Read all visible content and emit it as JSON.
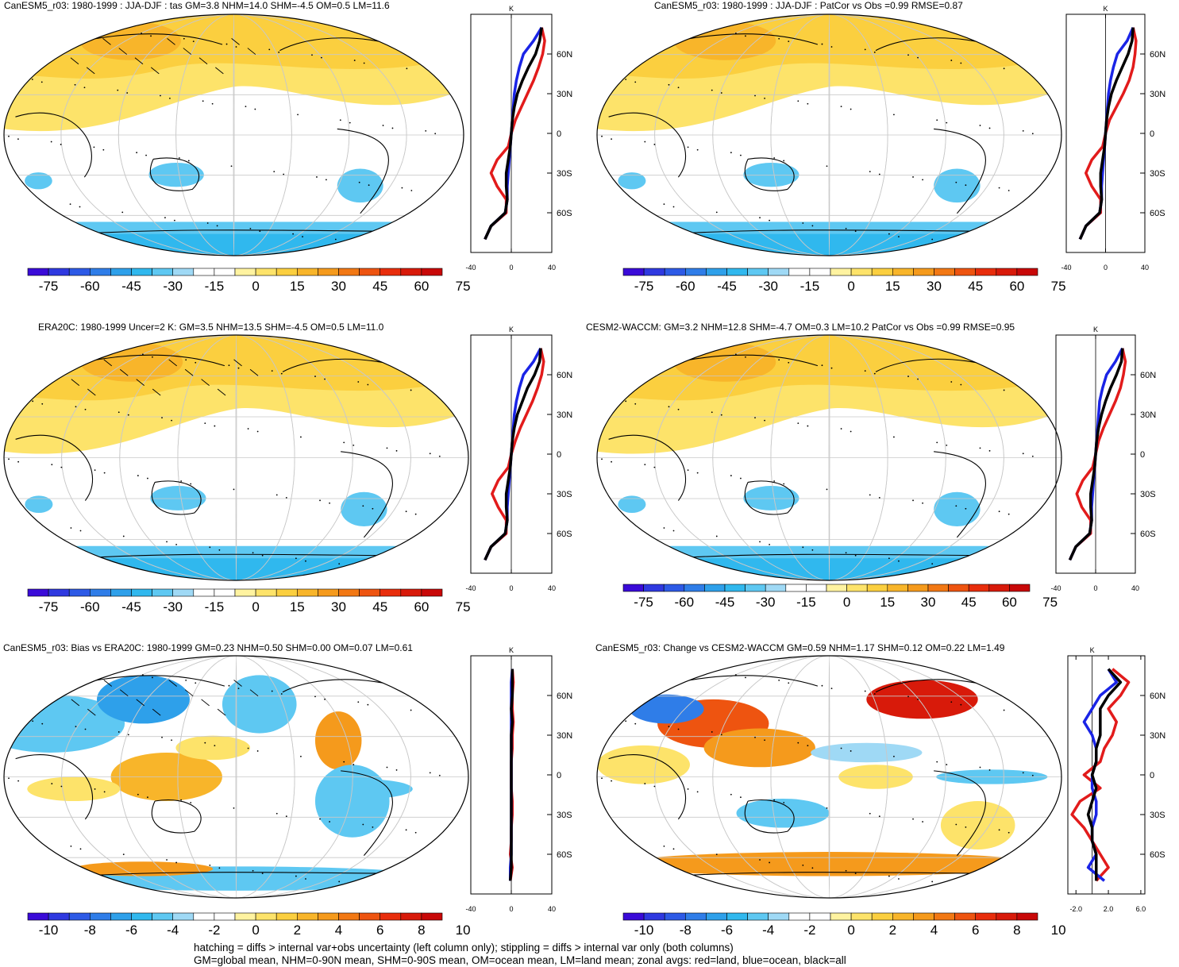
{
  "palette": [
    "#3a0bd8",
    "#2f39e0",
    "#2d5ae6",
    "#2f7de8",
    "#2ea0ea",
    "#30b8ee",
    "#5ec8f2",
    "#9fd9f5",
    "#ffffff",
    "#ffffff",
    "#fff3a0",
    "#fde36a",
    "#fbcf3f",
    "#f8b52a",
    "#f59a1c",
    "#f27814",
    "#ee5410",
    "#e82d0c",
    "#d81a0a",
    "#c80808"
  ],
  "zonal_colors": {
    "land": "#e21b1b",
    "ocean": "#1a24e6",
    "all": "#000000"
  },
  "panels": [
    {
      "id": "p1",
      "title": "CanESM5_r03: 1980-1999 : JJA-DJF : tas GM=3.8 NHM=14.0 SHM=-4.5 OM=0.5 LM=11.6",
      "cbar_labels": [
        "-75",
        "-60",
        "-45",
        "-30",
        "-15",
        "0",
        "15",
        "30",
        "45",
        "60",
        "75"
      ],
      "zonal_top": "K",
      "zonal_xticks": [
        "-40",
        "0",
        "40"
      ],
      "zonal_yticks": [
        "60N",
        "30N",
        "0",
        "30S",
        "60S"
      ]
    },
    {
      "id": "p2",
      "title": "CanESM5_r03: 1980-1999 : JJA-DJF : PatCor vs Obs =0.99 RMSE=0.87",
      "cbar_labels": [
        "-75",
        "-60",
        "-45",
        "-30",
        "-15",
        "0",
        "15",
        "30",
        "45",
        "60",
        "75"
      ],
      "zonal_top": "K",
      "zonal_xticks": [
        "-40",
        "0",
        "40"
      ],
      "zonal_yticks": [
        "60N",
        "30N",
        "0",
        "30S",
        "60S"
      ]
    },
    {
      "id": "p3",
      "title": "ERA20C: 1980-1999 Uncer=2 K: GM=3.5 NHM=13.5 SHM=-4.5 OM=0.5 LM=11.0",
      "cbar_labels": [
        "-75",
        "-60",
        "-45",
        "-30",
        "-15",
        "0",
        "15",
        "30",
        "45",
        "60",
        "75"
      ],
      "zonal_top": "K",
      "zonal_xticks": [
        "-40",
        "0",
        "40"
      ],
      "zonal_yticks": [
        "60N",
        "30N",
        "0",
        "30S",
        "60S"
      ]
    },
    {
      "id": "p4",
      "title": "CESM2-WACCM: GM=3.2 NHM=12.8 SHM=-4.7 OM=0.3 LM=10.2 PatCor vs Obs =0.99 RMSE=0.95",
      "cbar_labels": [
        "-75",
        "-60",
        "-45",
        "-30",
        "-15",
        "0",
        "15",
        "30",
        "45",
        "60",
        "75"
      ],
      "zonal_top": "K",
      "zonal_xticks": [
        "-40",
        "0",
        "40"
      ],
      "zonal_yticks": [
        "60N",
        "30N",
        "0",
        "30S",
        "60S"
      ]
    },
    {
      "id": "p5",
      "title": "CanESM5_r03: Bias vs ERA20C: 1980-1999 GM=0.23 NHM=0.50 SHM=0.00 OM=0.07 LM=0.61",
      "cbar_labels": [
        "-10",
        "-8",
        "-6",
        "-4",
        "-2",
        "0",
        "2",
        "4",
        "6",
        "8",
        "10"
      ],
      "zonal_top": "K",
      "zonal_xticks": [
        "-40",
        "0",
        "40"
      ],
      "zonal_yticks": [
        "60N",
        "30N",
        "0",
        "30S",
        "60S"
      ]
    },
    {
      "id": "p6",
      "title": "CanESM5_r03: Change vs CESM2-WACCM GM=0.59 NHM=1.17 SHM=0.12 OM=0.22 LM=1.49",
      "cbar_labels": [
        "-10",
        "-8",
        "-6",
        "-4",
        "-2",
        "0",
        "2",
        "4",
        "6",
        "8",
        "10"
      ],
      "zonal_top": "K",
      "zonal_xticks": [
        "-2.0",
        "2.0",
        "6.0"
      ],
      "zonal_yticks": [
        "60N",
        "30N",
        "0",
        "30S",
        "60S"
      ]
    }
  ],
  "footer": {
    "line1": "hatching = diffs > internal var+obs uncertainty (left column only); stippling = diffs > internal var only (both columns)",
    "line2": "GM=global mean, NHM=0-90N mean, SHM=0-90S mean, OM=ocean mean, LM=land mean; zonal avgs: red=land, blue=ocean, black=all"
  },
  "chart_data": [
    {
      "type": "heatmap",
      "title": "CanESM5_r03: 1980-1999 : JJA-DJF : tas GM=3.8 NHM=14.0 SHM=-4.5 OM=0.5 LM=11.6",
      "colorbar_levels": [
        -75,
        -60,
        -45,
        -30,
        -15,
        0,
        15,
        30,
        45,
        60,
        75
      ],
      "zonal_mean": {
        "ylabels": [
          "60N",
          "30N",
          "0",
          "30S",
          "60S"
        ],
        "xlim": [
          -40,
          40
        ],
        "lat": [
          80,
          70,
          60,
          50,
          40,
          30,
          20,
          10,
          0,
          -10,
          -20,
          -30,
          -40,
          -50,
          -60,
          -70,
          -80
        ],
        "series": [
          {
            "name": "land",
            "values": [
              30,
              33,
              31,
              27,
              22,
              16,
              10,
              4,
              0,
              -3,
              -14,
              -20,
              -14,
              -5,
              -5,
              -20,
              -26
            ]
          },
          {
            "name": "ocean",
            "values": [
              30,
              22,
              12,
              8,
              5,
              3,
              2,
              1,
              0,
              -1,
              -2,
              -3,
              -4,
              -4,
              -6,
              -20,
              -26
            ]
          },
          {
            "name": "all",
            "values": [
              30,
              28,
              24,
              17,
              11,
              6,
              3,
              1,
              0,
              -1,
              -3,
              -5,
              -5,
              -4,
              -6,
              -20,
              -26
            ]
          }
        ]
      }
    },
    {
      "type": "heatmap",
      "title": "CanESM5_r03: 1980-1999 : JJA-DJF : PatCor vs Obs =0.99 RMSE=0.87",
      "colorbar_levels": [
        -75,
        -60,
        -45,
        -30,
        -15,
        0,
        15,
        30,
        45,
        60,
        75
      ],
      "zonal_mean": {
        "ylabels": [
          "60N",
          "30N",
          "0",
          "30S",
          "60S"
        ],
        "xlim": [
          -40,
          40
        ],
        "lat": [
          80,
          70,
          60,
          50,
          40,
          30,
          20,
          10,
          0,
          -10,
          -20,
          -30,
          -40,
          -50,
          -60,
          -70,
          -80
        ],
        "series": [
          {
            "name": "land",
            "values": [
              28,
              31,
              30,
              28,
              24,
              18,
              11,
              4,
              0,
              -3,
              -14,
              -20,
              -14,
              -5,
              -5,
              -20,
              -26
            ]
          },
          {
            "name": "ocean",
            "values": [
              28,
              22,
              12,
              8,
              5,
              3,
              2,
              1,
              0,
              -1,
              -2,
              -3,
              -4,
              -4,
              -6,
              -20,
              -26
            ]
          },
          {
            "name": "all",
            "values": [
              28,
              27,
              23,
              17,
              11,
              6,
              3,
              1,
              0,
              -1,
              -3,
              -5,
              -5,
              -4,
              -6,
              -20,
              -26
            ]
          }
        ]
      }
    },
    {
      "type": "heatmap",
      "title": "ERA20C: 1980-1999 Uncer=2 K: GM=3.5 NHM=13.5 SHM=-4.5 OM=0.5 LM=11.0",
      "colorbar_levels": [
        -75,
        -60,
        -45,
        -30,
        -15,
        0,
        15,
        30,
        45,
        60,
        75
      ],
      "zonal_mean": {
        "ylabels": [
          "60N",
          "30N",
          "0",
          "30S",
          "60S"
        ],
        "xlim": [
          -40,
          40
        ],
        "lat": [
          80,
          70,
          60,
          50,
          40,
          30,
          20,
          10,
          0,
          -10,
          -20,
          -30,
          -40,
          -50,
          -60,
          -70,
          -80
        ],
        "series": [
          {
            "name": "land",
            "values": [
              29,
              32,
              30,
              26,
              21,
              15,
              9,
              4,
              0,
              -3,
              -13,
              -19,
              -13,
              -5,
              -5,
              -20,
              -26
            ]
          },
          {
            "name": "ocean",
            "values": [
              29,
              22,
              12,
              8,
              5,
              3,
              2,
              1,
              0,
              -1,
              -2,
              -3,
              -4,
              -4,
              -6,
              -20,
              -26
            ]
          },
          {
            "name": "all",
            "values": [
              29,
              28,
              23,
              16,
              11,
              6,
              3,
              1,
              0,
              -1,
              -3,
              -5,
              -5,
              -4,
              -6,
              -20,
              -26
            ]
          }
        ]
      }
    },
    {
      "type": "heatmap",
      "title": "CESM2-WACCM: GM=3.2 NHM=12.8 SHM=-4.7 OM=0.3 LM=10.2 PatCor vs Obs =0.99 RMSE=0.95",
      "colorbar_levels": [
        -75,
        -60,
        -45,
        -30,
        -15,
        0,
        15,
        30,
        45,
        60,
        75
      ],
      "zonal_mean": {
        "ylabels": [
          "60N",
          "30N",
          "0",
          "30S",
          "60S"
        ],
        "xlim": [
          -40,
          40
        ],
        "lat": [
          80,
          70,
          60,
          50,
          40,
          30,
          20,
          10,
          0,
          -10,
          -20,
          -30,
          -40,
          -50,
          -60,
          -70,
          -80
        ],
        "series": [
          {
            "name": "land",
            "values": [
              27,
              30,
              28,
              25,
              20,
              14,
              8,
              3,
              0,
              -3,
              -13,
              -19,
              -14,
              -5,
              -5,
              -20,
              -26
            ]
          },
          {
            "name": "ocean",
            "values": [
              27,
              20,
              11,
              7,
              4,
              3,
              2,
              1,
              0,
              -1,
              -2,
              -3,
              -4,
              -4,
              -6,
              -20,
              -26
            ]
          },
          {
            "name": "all",
            "values": [
              27,
              26,
              21,
              15,
              10,
              6,
              3,
              1,
              0,
              -1,
              -3,
              -5,
              -5,
              -4,
              -6,
              -20,
              -26
            ]
          }
        ]
      }
    },
    {
      "type": "heatmap",
      "title": "CanESM5_r03: Bias vs ERA20C: 1980-1999 GM=0.23 NHM=0.50 SHM=0.00 OM=0.07 LM=0.61",
      "colorbar_levels": [
        -10,
        -8,
        -6,
        -4,
        -2,
        0,
        2,
        4,
        6,
        8,
        10
      ],
      "zonal_mean": {
        "ylabels": [
          "60N",
          "30N",
          "0",
          "30S",
          "60S"
        ],
        "xlim": [
          -40,
          40
        ],
        "lat": [
          80,
          70,
          60,
          50,
          40,
          30,
          20,
          10,
          0,
          -10,
          -20,
          -30,
          -40,
          -50,
          -60,
          -70,
          -80
        ],
        "series": [
          {
            "name": "land",
            "values": [
              1,
              2,
              1,
              1,
              2,
              1,
              1,
              0,
              0,
              0,
              1,
              1,
              0,
              0,
              -1,
              1,
              -1
            ]
          },
          {
            "name": "ocean",
            "values": [
              1,
              0,
              0,
              0,
              0,
              0,
              0,
              0,
              0,
              0,
              0,
              0,
              0,
              0,
              0,
              -1,
              -1
            ]
          },
          {
            "name": "all",
            "values": [
              1,
              1,
              1,
              0,
              1,
              0,
              0,
              0,
              0,
              0,
              0,
              0,
              0,
              0,
              0,
              0,
              -1
            ]
          }
        ]
      }
    },
    {
      "type": "heatmap",
      "title": "CanESM5_r03: Change vs CESM2-WACCM GM=0.59 NHM=1.17 SHM=0.12 OM=0.22 LM=1.49",
      "colorbar_levels": [
        -10,
        -8,
        -6,
        -4,
        -2,
        0,
        2,
        4,
        6,
        8,
        10
      ],
      "zonal_mean": {
        "ylabels": [
          "60N",
          "30N",
          "0",
          "30S",
          "60S"
        ],
        "xlim": [
          -3,
          6.5
        ],
        "lat": [
          80,
          70,
          60,
          50,
          40,
          30,
          20,
          10,
          0,
          -10,
          -20,
          -30,
          -40,
          -50,
          -60,
          -70,
          -80
        ],
        "series": [
          {
            "name": "land",
            "values": [
              2.5,
              4.5,
              3.5,
              2,
              3,
              2.5,
              1.5,
              1,
              -1,
              1,
              -1.5,
              -2.5,
              -1,
              0,
              1,
              2,
              0.5
            ]
          },
          {
            "name": "ocean",
            "values": [
              2,
              3,
              1,
              0,
              -1,
              0,
              0.5,
              0.5,
              0,
              0,
              0.5,
              0.5,
              0,
              0,
              0.5,
              -0.5,
              1.5
            ]
          },
          {
            "name": "all",
            "values": [
              2,
              3.5,
              2,
              1,
              1,
              1,
              0.5,
              0.5,
              0,
              0.5,
              0,
              -0.5,
              0,
              0,
              0.5,
              0.5,
              0.5
            ]
          }
        ]
      }
    }
  ]
}
